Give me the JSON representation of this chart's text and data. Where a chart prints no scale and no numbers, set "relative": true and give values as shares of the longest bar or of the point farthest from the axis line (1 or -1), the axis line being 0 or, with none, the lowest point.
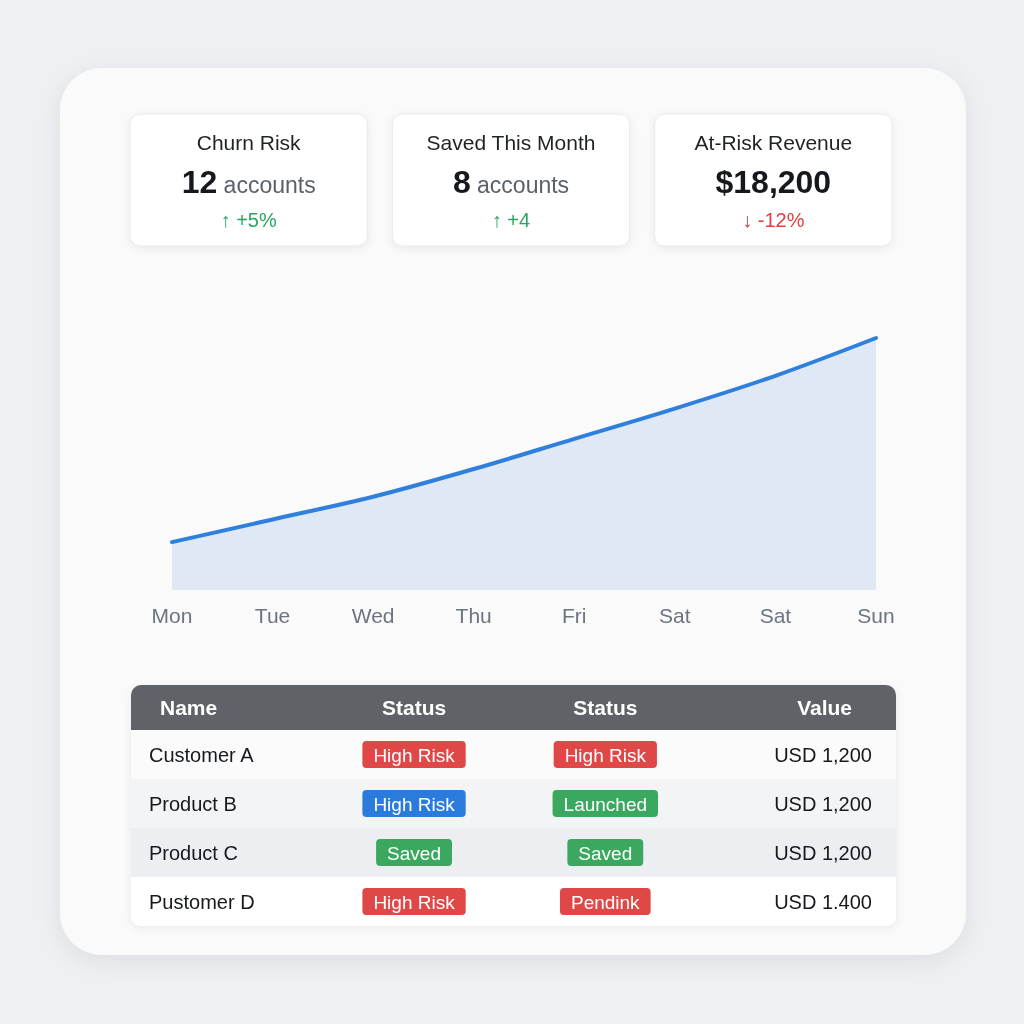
{
  "chart_data": [
    {
      "type": "other",
      "categories": [
        "Churn Risk",
        "Saved This Month",
        "At-Risk Revenue"
      ],
      "value_labels": [
        "12 accounts",
        "8 accounts",
        "$18,200"
      ],
      "annotations": [
        "↑ +5%",
        "↑ +4",
        "↓ -12%"
      ],
      "colors": [
        "#2ea55e",
        "#2ea55e",
        "#e0403f"
      ]
    },
    {
      "type": "area",
      "categories": [
        "Mon",
        "Tue",
        "Wed",
        "Thu",
        "Fri",
        "Sat",
        "Sat",
        "Sun"
      ],
      "values": [
        0.19,
        0.28,
        0.37,
        0.48,
        0.6,
        0.72,
        0.85,
        1
      ],
      "relative": true,
      "color": "#2f7fdc"
    },
    {
      "type": "other",
      "ylabel": "Name",
      "categories": [
        "Customer A",
        "Product B",
        "Product C",
        "Pustomer D"
      ],
      "series": [
        {
          "name": "Status",
          "values": [
            null,
            null,
            null,
            null
          ],
          "value_labels": [
            "High Risk",
            "High Risk",
            "Saved",
            "High Risk"
          ],
          "colors": [
            "#e04848",
            "#2b7bdc",
            "#3aa85e",
            "#e04848"
          ]
        },
        {
          "name": "Status",
          "values": [
            null,
            null,
            null,
            null
          ],
          "value_labels": [
            "High Risk",
            "Launched",
            "Saved",
            "Pendink"
          ],
          "colors": [
            "#e04848",
            "#3aa85e",
            "#3aa85e",
            "#e04848"
          ]
        },
        {
          "name": "Value",
          "values": [
            null,
            null,
            null,
            null
          ],
          "value_labels": [
            "USD 1,200",
            "USD 1,200",
            "USD 1,200",
            "USD 1.400"
          ]
        }
      ]
    }
  ]
}
